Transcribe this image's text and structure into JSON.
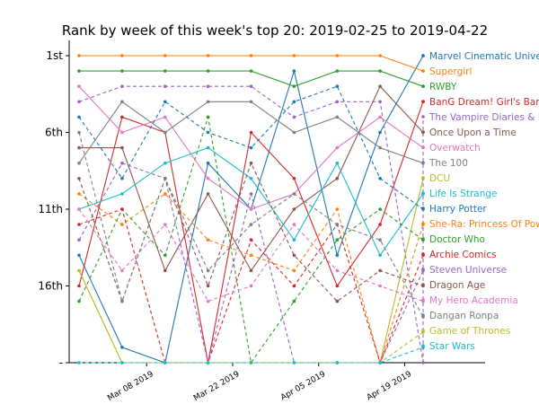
{
  "chart_data": {
    "type": "line",
    "title": "Rank by week of this week's top 20: 2019-02-25 to 2019-04-22",
    "y_ticks": [
      {
        "label": "1st",
        "value": 1
      },
      {
        "label": "6th",
        "value": 6
      },
      {
        "label": "11th",
        "value": 11
      },
      {
        "label": "16th",
        "value": 16
      },
      {
        "label": "-",
        "value": 21
      }
    ],
    "x_ticks": [
      {
        "label": "Mar 08 2019",
        "week": 1.571
      },
      {
        "label": "Mar 22 2019",
        "week": 3.571
      },
      {
        "label": "Apr 05 2019",
        "week": 5.571
      },
      {
        "label": "Apr 19 2019",
        "week": 7.571
      }
    ],
    "dates": [
      "2019-02-25",
      "2019-03-04",
      "2019-03-11",
      "2019-03-18",
      "2019-03-25",
      "2019-04-01",
      "2019-04-08",
      "2019-04-15",
      "2019-04-22"
    ],
    "ylim": [
      21,
      1
    ],
    "series": [
      {
        "name": "Marvel Cinematic Universe",
        "color": "#1f77b4",
        "dash": "solid",
        "values": [
          14,
          20,
          21,
          8,
          11,
          2,
          14,
          6,
          1
        ]
      },
      {
        "name": "Supergirl",
        "color": "#ff7f0e",
        "dash": "solid",
        "values": [
          1,
          1,
          1,
          1,
          1,
          1,
          1,
          1,
          2
        ]
      },
      {
        "name": "RWBY",
        "color": "#2ca02c",
        "dash": "solid",
        "values": [
          2,
          2,
          2,
          2,
          2,
          3,
          2,
          2,
          3
        ]
      },
      {
        "name": "BanG Dream! Girl's Band Party!",
        "color": "#d62728",
        "dash": "solid",
        "values": [
          16,
          5,
          6,
          21,
          6,
          9,
          16,
          12,
          4
        ]
      },
      {
        "name": "The Vampire Diaries & Legacies",
        "color": "#9467bd",
        "dash": "dashed",
        "values": [
          4,
          3,
          3,
          3,
          3,
          5,
          4,
          4,
          21
        ]
      },
      {
        "name": "Once Upon a Time",
        "color": "#8c564b",
        "dash": "solid",
        "values": [
          7,
          7,
          15,
          10,
          15,
          11,
          9,
          3,
          6
        ]
      },
      {
        "name": "Overwatch",
        "color": "#e377c2",
        "dash": "solid",
        "values": [
          3,
          6,
          5,
          9,
          11,
          10,
          7,
          5,
          7
        ]
      },
      {
        "name": "The 100",
        "color": "#7f7f7f",
        "dash": "solid",
        "values": [
          8,
          4,
          6,
          4,
          4,
          6,
          5,
          7,
          8
        ]
      },
      {
        "name": "DCU",
        "color": "#bcbd22",
        "dash": "solid",
        "values": [
          15,
          21,
          21,
          21,
          21,
          21,
          21,
          21,
          9
        ]
      },
      {
        "name": "Life Is Strange",
        "color": "#17becf",
        "dash": "solid",
        "values": [
          11,
          10,
          8,
          7,
          9,
          13,
          8,
          14,
          10
        ]
      },
      {
        "name": "Harry Potter",
        "color": "#1f77b4",
        "dash": "dashed",
        "values": [
          5,
          9,
          4,
          6,
          7,
          4,
          3,
          9,
          11
        ]
      },
      {
        "name": "She-Ra: Princess Of Power",
        "color": "#ff7f0e",
        "dash": "dashed",
        "values": [
          10,
          12,
          10,
          13,
          14,
          15,
          11,
          21,
          12
        ]
      },
      {
        "name": "Doctor Who",
        "color": "#2ca02c",
        "dash": "dashed",
        "values": [
          17,
          11,
          14,
          5,
          21,
          17,
          13,
          11,
          13
        ]
      },
      {
        "name": "Archie Comics",
        "color": "#d62728",
        "dash": "dashed",
        "values": [
          12,
          11,
          21,
          21,
          13,
          16,
          12,
          21,
          14
        ]
      },
      {
        "name": "Steven Universe",
        "color": "#9467bd",
        "dash": "dashed",
        "values": [
          13,
          8,
          9,
          21,
          10,
          21,
          21,
          21,
          15
        ]
      },
      {
        "name": "Dragon Age",
        "color": "#8c564b",
        "dash": "dashed",
        "values": [
          9,
          17,
          9,
          16,
          8,
          14,
          17,
          15,
          16
        ]
      },
      {
        "name": "My Hero Academia",
        "color": "#e377c2",
        "dash": "dashed",
        "values": [
          11,
          15,
          12,
          17,
          16,
          12,
          15,
          16,
          17
        ]
      },
      {
        "name": "Dangan Ronpa",
        "color": "#7f7f7f",
        "dash": "dashed",
        "values": [
          6,
          17,
          9,
          15,
          12,
          10,
          12,
          13,
          18
        ]
      },
      {
        "name": "Game of Thrones",
        "color": "#bcbd22",
        "dash": "dashed",
        "values": [
          15,
          21,
          21,
          21,
          21,
          21,
          21,
          21,
          19
        ]
      },
      {
        "name": "Star Wars",
        "color": "#17becf",
        "dash": "dashed",
        "values": [
          21,
          21,
          21,
          21,
          21,
          21,
          21,
          21,
          20
        ]
      }
    ]
  }
}
